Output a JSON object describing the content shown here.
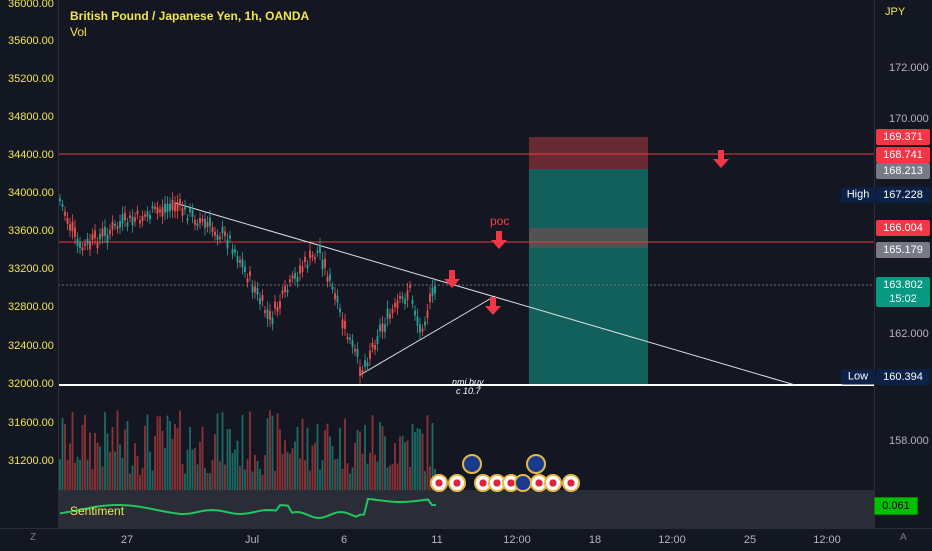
{
  "header": {
    "title": "British Pound / Japanese Yen, 1h, OANDA",
    "indicator": "Vol"
  },
  "currency": "JPY",
  "left_axis": {
    "ticks": [
      "36000.00",
      "35600.00",
      "35200.00",
      "34800.00",
      "34400.00",
      "34000.00",
      "33600.00",
      "33200.00",
      "32800.00",
      "32400.00",
      "32000.00",
      "31600.00",
      "31200.00"
    ]
  },
  "right_axis": {
    "ticks": [
      "172.000",
      "170.000",
      "162.000",
      "158.000"
    ]
  },
  "right_labels": [
    {
      "text": "169.371",
      "color": "#f23645"
    },
    {
      "text": "168.741",
      "color": "#f23645"
    },
    {
      "text": "168.213",
      "color": "#787b86"
    },
    {
      "text": "167.228",
      "color": "#0b2147"
    },
    {
      "text": "166.004",
      "color": "#f23645"
    },
    {
      "text": "165.179",
      "color": "#787b86"
    },
    {
      "text": "163.802",
      "color": "#089981"
    },
    {
      "text": "15:02",
      "color": "#089981"
    },
    {
      "text": "160.394",
      "color": "#0b2147"
    }
  ],
  "high_label": "High",
  "low_label": "Low",
  "time_axis": [
    "27",
    "Jul",
    "6",
    "11",
    "12:00",
    "18",
    "12:00",
    "25",
    "12:00"
  ],
  "annotations": {
    "poc": "poc",
    "nmi_buy": "nmi buy",
    "c_value": "c 10.7"
  },
  "sentiment": {
    "label": "Sentiment",
    "value": "0.061"
  },
  "corners": {
    "left": "Z",
    "right": "A"
  },
  "colors": {
    "accent": "#f2e64f",
    "bull": "#26a69a",
    "bear": "#ef5350",
    "line": "#f23645"
  }
}
